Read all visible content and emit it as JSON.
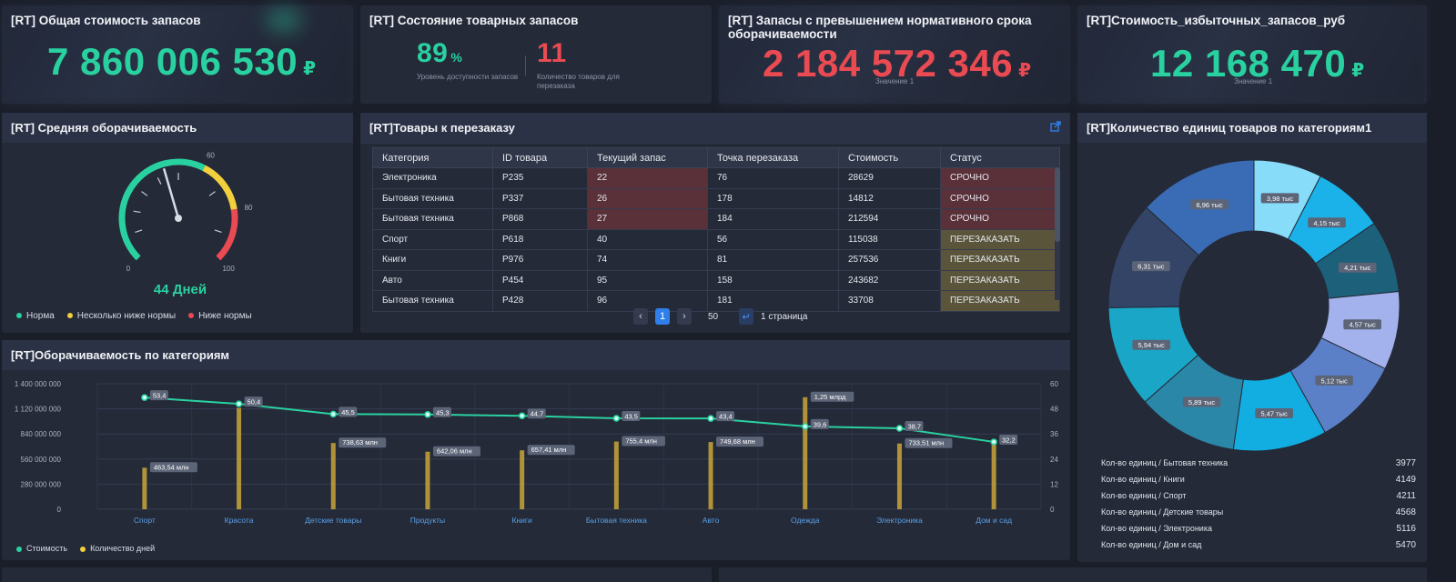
{
  "kpi": {
    "total_stock": {
      "title": "[RT] Общая стоимость запасов",
      "value": "7 860 006 530",
      "currency": "₽"
    },
    "stock_state": {
      "title": "[RT] Состояние товарных запасов",
      "availability_value": "89",
      "availability_unit": "%",
      "availability_label": "Уровень доступности запасов",
      "reorder_value": "11",
      "reorder_label": "Количество товаров для перезаказа"
    },
    "over_norm": {
      "title": "[RT] Запасы с превышением нормативного срока оборачиваемости",
      "value": "2 184 572 346",
      "currency": "₽",
      "sub": "Значение 1"
    },
    "excess": {
      "title": "[RT]Стоимость_избыточных_запасов_руб",
      "value": "12 168 470",
      "currency": "₽",
      "sub": "Значение 1"
    }
  },
  "gauge": {
    "title": "[RT] Средняя оборачиваемость",
    "value_text": "44 Дней",
    "value": 44,
    "ticks": [
      "0",
      "60",
      "80",
      "100"
    ],
    "colors": {
      "norm": "#2ad1a0",
      "below": "#f2cf3c",
      "low": "#ea4a52"
    },
    "legend": [
      "Норма",
      "Несколько ниже нормы",
      "Ниже нормы"
    ]
  },
  "reorder": {
    "title": "[RT]Товары к перезаказу",
    "columns": [
      "Категория",
      "ID товара",
      "Текущий запас",
      "Точка перезаказа",
      "Стоимость",
      "Статус"
    ],
    "rows": [
      [
        "Электроника",
        "P235",
        "22",
        "76",
        "28629",
        "СРОЧНО"
      ],
      [
        "Бытовая техника",
        "P337",
        "26",
        "178",
        "14812",
        "СРОЧНО"
      ],
      [
        "Бытовая техника",
        "P868",
        "27",
        "184",
        "212594",
        "СРОЧНО"
      ],
      [
        "Спорт",
        "P618",
        "40",
        "56",
        "115038",
        "ПЕРЕЗАКАЗАТЬ"
      ],
      [
        "Книги",
        "P976",
        "74",
        "81",
        "257536",
        "ПЕРЕЗАКАЗАТЬ"
      ],
      [
        "Авто",
        "P454",
        "95",
        "158",
        "243682",
        "ПЕРЕЗАКАЗАТЬ"
      ],
      [
        "Бытовая техника",
        "P428",
        "96",
        "181",
        "33708",
        "ПЕРЕЗАКАЗАТЬ"
      ]
    ],
    "pager": {
      "prev": "‹",
      "page": "1",
      "next": "›",
      "page_size": "50",
      "enter": "↵",
      "pages_text": "1 страница"
    }
  },
  "chart_data": [
    {
      "type": "bar",
      "title": "[RT]Оборачиваемость по категориям",
      "categories": [
        "Спорт",
        "Красота",
        "Детские товары",
        "Продукты",
        "Книги",
        "Бытовая техника",
        "Авто",
        "Одежда",
        "Электроника",
        "Дом и сад"
      ],
      "series": [
        {
          "name": "Стоимость",
          "type": "bar",
          "axis": "left",
          "values": [
            463540000,
            1130000000,
            738630000,
            642060000,
            657410000,
            755400000,
            749680000,
            1250000000,
            733510000,
            720000000
          ],
          "labels": [
            "463,54 млн",
            "",
            "738,63 млн",
            "642,06 млн",
            "657,41 млн",
            "755,4 млн",
            "749,68 млн",
            "1,25 млрд",
            "733,51 млн",
            ""
          ],
          "color": "#c9a63a"
        },
        {
          "name": "Количество дней",
          "type": "line",
          "axis": "right",
          "values": [
            53.4,
            50.4,
            45.5,
            45.3,
            44.7,
            43.5,
            43.4,
            39.6,
            38.7,
            32.2
          ],
          "labels": [
            "53,4",
            "50,4",
            "45,5",
            "45,3",
            "44,7",
            "43,5",
            "43,4",
            "39,6",
            "38,7",
            "32,2"
          ],
          "color": "#2ad1a0"
        }
      ],
      "left_ticks": [
        "0",
        "280 000 000",
        "560 000 000",
        "840 000 000",
        "1 120 000 000",
        "1 400 000 000"
      ],
      "right_ticks": [
        "0",
        "12",
        "24",
        "36",
        "48",
        "60"
      ],
      "ylim_left": [
        0,
        1400000000
      ],
      "ylim_right": [
        0,
        60
      ],
      "legend": [
        "Стоимость",
        "Количество дней"
      ],
      "grid": true
    },
    {
      "type": "pie",
      "title": "[RT]Количество единиц товаров по категориям1",
      "slices": [
        {
          "label": "3,98 тыс",
          "value": 3977,
          "color": "#86dcf9"
        },
        {
          "label": "4,15 тыс",
          "value": 4149,
          "color": "#1ab2e8"
        },
        {
          "label": "4,21 тыс",
          "value": 4211,
          "color": "#1c607a"
        },
        {
          "label": "4,57 тыс",
          "value": 4568,
          "color": "#a3b2ec"
        },
        {
          "label": "5,12 тыс",
          "value": 5116,
          "color": "#5b80c8"
        },
        {
          "label": "5,47 тыс",
          "value": 5470,
          "color": "#12aee2"
        },
        {
          "label": "5,89 тыс",
          "value": 5890,
          "color": "#2b87a8"
        },
        {
          "label": "5,94 тыс",
          "value": 5940,
          "color": "#1aa6c6"
        },
        {
          "label": "6,31 тыс",
          "value": 6310,
          "color": "#334466"
        },
        {
          "label": "6,96 тыс",
          "value": 6960,
          "color": "#3a6cb5"
        }
      ],
      "legend_rows": [
        {
          "name": "Кол-во единиц / Бытовая техника",
          "value": "3977"
        },
        {
          "name": "Кол-во единиц / Книги",
          "value": "4149"
        },
        {
          "name": "Кол-во единиц / Спорт",
          "value": "4211"
        },
        {
          "name": "Кол-во единиц / Детские товары",
          "value": "4568"
        },
        {
          "name": "Кол-во единиц / Электроника",
          "value": "5116"
        },
        {
          "name": "Кол-во единиц / Дом и сад",
          "value": "5470"
        }
      ]
    }
  ]
}
